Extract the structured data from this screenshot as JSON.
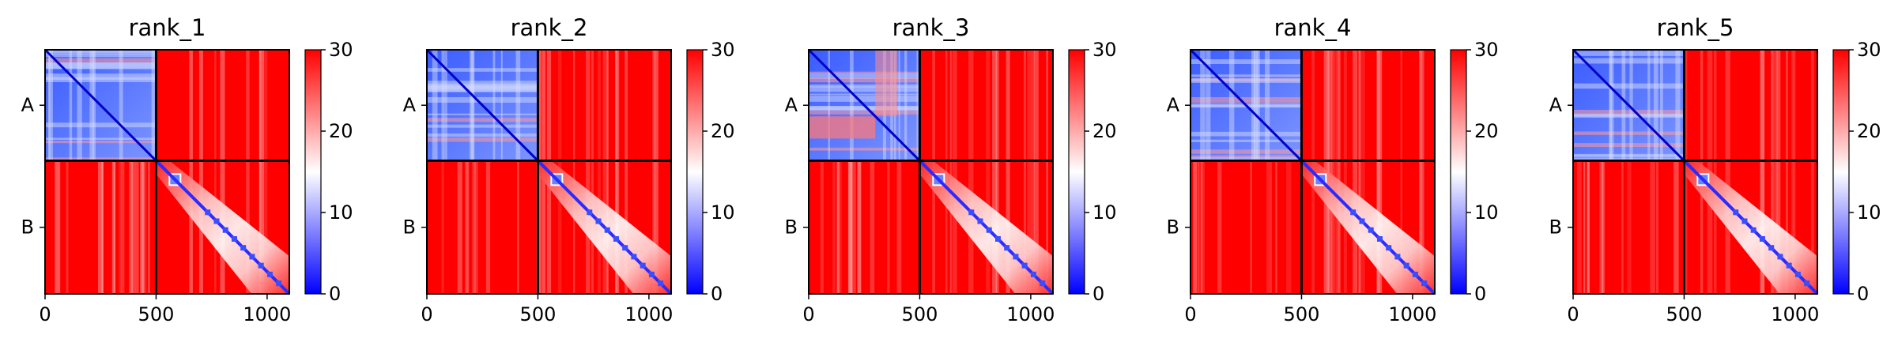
{
  "chart_data": {
    "type": "heatmap",
    "colormap": {
      "name": "bwr",
      "low": "#0000ff",
      "mid": "#ffffff",
      "high": "#ff0000"
    },
    "color_range": [
      0,
      30
    ],
    "colorbar_ticks": [
      "0",
      "10",
      "20",
      "30"
    ],
    "axis_range": [
      0,
      1100
    ],
    "x_ticks": [
      {
        "value": 0,
        "label": "0"
      },
      {
        "value": 500,
        "label": "500"
      },
      {
        "value": 1000,
        "label": "1000"
      }
    ],
    "chain_break": 500,
    "chains": [
      {
        "label": "A",
        "start": 0,
        "end": 500
      },
      {
        "label": "B",
        "start": 500,
        "end": 1100
      }
    ],
    "panels": [
      {
        "title": "rank_1"
      },
      {
        "title": "rank_2"
      },
      {
        "title": "rank_3"
      },
      {
        "title": "rank_4"
      },
      {
        "title": "rank_5"
      }
    ]
  }
}
